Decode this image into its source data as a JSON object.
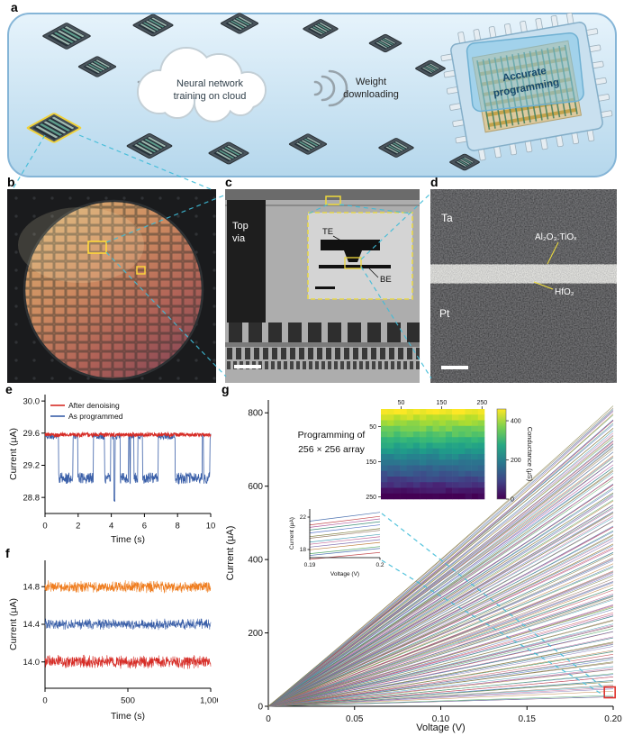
{
  "figure": {
    "background": "#ffffff",
    "connector_color": "#3fbcd8",
    "panel_labels": {
      "a": "a",
      "b": "b",
      "c": "c",
      "d": "d",
      "e": "e",
      "f": "f",
      "g": "g"
    }
  },
  "panel_a": {
    "cloud_lines": [
      "Neural network",
      "training on cloud"
    ],
    "weight_lines": [
      "Weight",
      "downloading"
    ],
    "chip_lines": [
      "Accurate",
      "programming"
    ],
    "highlight_color": "#f0d23c"
  },
  "panel_b": {
    "wafer_box_color": "#ffd83a"
  },
  "panel_c": {
    "top_via_lines": [
      "Top",
      "via"
    ],
    "te_label": "TE",
    "be_label": "BE",
    "inset_border_color": "#e8d84a"
  },
  "panel_d": {
    "ta_label": "Ta",
    "pt_label": "Pt",
    "oxide_label": "Al₂O₃:TiOₓ",
    "hfo2_label": "HfO₂",
    "pointer_color": "#f3e13c"
  },
  "chart_data": [
    {
      "id": "e",
      "type": "line",
      "xlabel": "Time (s)",
      "ylabel": "Current (μA)",
      "xlim": [
        0,
        10
      ],
      "ylim": [
        28.6,
        30.08
      ],
      "xticks": [
        0,
        2,
        4,
        6,
        8,
        10
      ],
      "yticks": [
        28.8,
        29.2,
        29.6,
        30.0
      ],
      "legend": [
        {
          "label": "After denoising",
          "color": "#d62c26"
        },
        {
          "label": "As programmed",
          "color": "#3a5fa8"
        }
      ],
      "model": {
        "as_programmed": {
          "kind": "random-telegraph-noise",
          "high_level_uA": 29.56,
          "low_level_uA": 29.04,
          "deep_dip_uA": 28.75,
          "deep_dip_time_s": 4.2
        },
        "after_denoising": {
          "kind": "steady",
          "level_uA": 29.58
        }
      }
    },
    {
      "id": "f",
      "type": "line",
      "xlabel": "Time (s)",
      "ylabel": "Current (μA)",
      "xlim": [
        0,
        1000
      ],
      "ylim": [
        13.72,
        15.08
      ],
      "xticks": [
        0,
        500,
        1000
      ],
      "xtick_labels": [
        "0",
        "500",
        "1,000"
      ],
      "yticks": [
        14.0,
        14.4,
        14.8
      ],
      "series": [
        {
          "label": "state ~14.8 μA",
          "color": "#ef7d1f",
          "mean_uA": 14.8,
          "noise_uA": 0.05
        },
        {
          "label": "state ~14.4 μA",
          "color": "#3a5fa8",
          "mean_uA": 14.4,
          "noise_uA": 0.045
        },
        {
          "label": "state ~14.0 μA",
          "color": "#d62c26",
          "mean_uA": 14.0,
          "noise_uA": 0.055
        }
      ]
    },
    {
      "id": "g",
      "type": "line",
      "xlabel": "Voltage (V)",
      "ylabel": "Current (μA)",
      "xlim": [
        0,
        0.2
      ],
      "ylim": [
        0,
        835
      ],
      "xticks": [
        0,
        0.05,
        0.1,
        0.15,
        0.2
      ],
      "xtick_labels": [
        "0",
        "0.05",
        "0.10",
        "0.15",
        "0.20"
      ],
      "yticks": [
        0,
        200,
        400,
        600,
        800
      ],
      "n_curves": 165,
      "endpoint_current_range_uA": [
        24,
        820
      ],
      "annotation_lines": [
        "Programming of",
        "256 × 256 array"
      ],
      "marker": {
        "shape": "open-square",
        "color": "#e0312a",
        "x": 0.198,
        "y": 38
      },
      "palette": [
        "#c44e52",
        "#4c72b0",
        "#55a868",
        "#bd7f3c",
        "#8172b2",
        "#c06a9a",
        "#4aa3b8",
        "#937860",
        "#7f7f3f",
        "#5a77c9",
        "#3f8f7a",
        "#b25a9c"
      ]
    },
    {
      "id": "g_heatmap",
      "type": "heatmap",
      "rows": 256,
      "cols": 256,
      "xticks": [
        50,
        150,
        250
      ],
      "yticks": [
        50,
        150,
        250
      ],
      "colorbar_label": "Conductance (μS)",
      "colorbar_ticks": [
        0,
        200,
        400
      ],
      "colorbar_max_uS": 460,
      "colormap": "viridis",
      "value_pattern": "conductance decreases smoothly from ~450 μS (yellow, top rows) to ~0 μS (dark purple, bottom rows)"
    },
    {
      "id": "g_inset",
      "type": "line",
      "xlabel": "Voltage (V)",
      "ylabel": "Current (μA)",
      "xlim": [
        0.19,
        0.2
      ],
      "ylim": [
        17,
        23
      ],
      "xticks": [
        0.19,
        0.2
      ],
      "xtick_labels": [
        "0.19",
        "0.2"
      ],
      "yticks": [
        18,
        22
      ],
      "n_curves": 14
    }
  ]
}
